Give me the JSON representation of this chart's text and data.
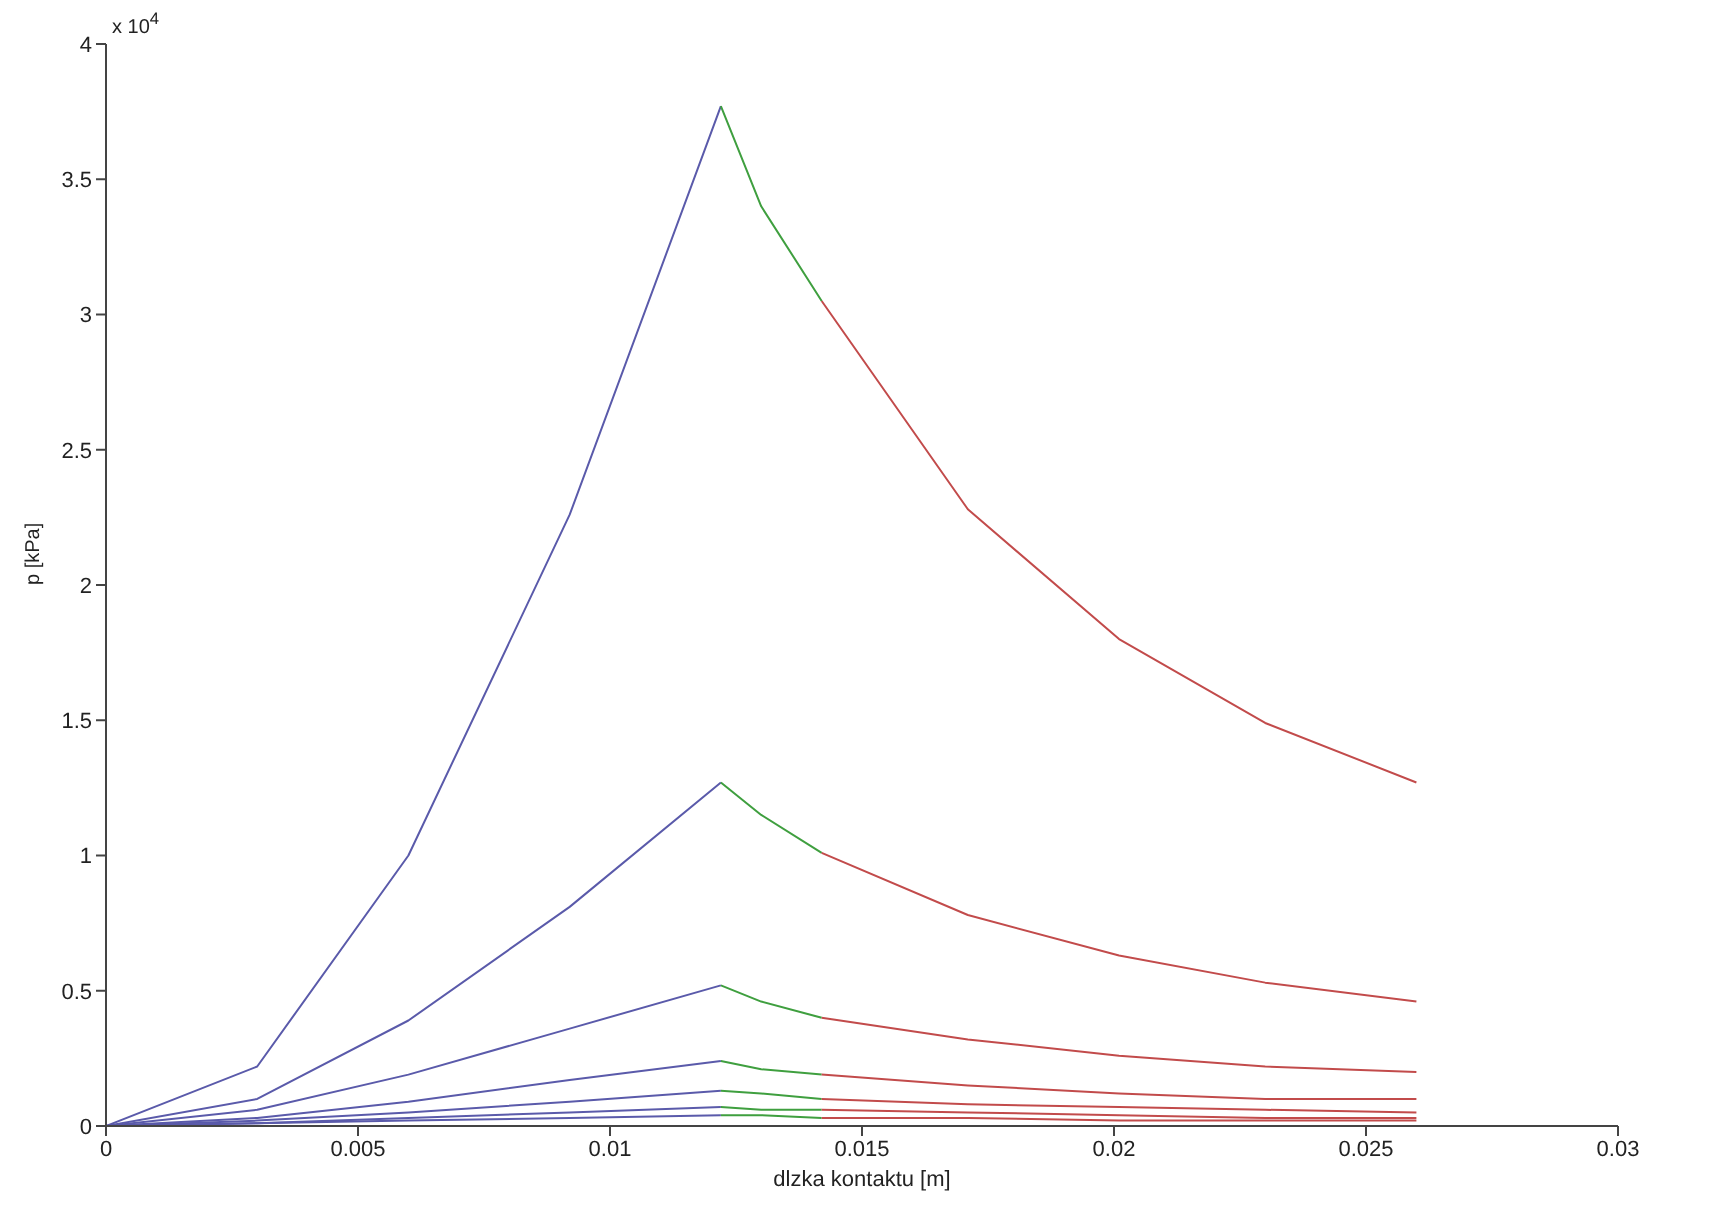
{
  "chart_data": {
    "type": "line",
    "xlabel": "dlzka kontaktu [m]",
    "ylabel": "p [kPa]",
    "annotations": [
      "x 10$^{4}$"
    ],
    "xlim": [
      0,
      0.03
    ],
    "xticks": [
      0,
      0.005,
      0.01,
      0.015,
      0.02,
      0.025,
      0.03
    ],
    "ylim": [
      0,
      4
    ],
    "yticks": [
      0,
      0.5,
      1,
      1.5,
      2,
      2.5,
      3,
      3.5,
      4
    ],
    "grid": false,
    "marker": "none",
    "line_style": "solid",
    "series": [
      {
        "color": "#5a5aaa",
        "x": [
          0,
          0.003,
          0.006,
          0.0092,
          0.0122
        ],
        "values": [
          0,
          0.22,
          1,
          2.26,
          3.77
        ]
      },
      {
        "color": "#3f9f3f",
        "x": [
          0.0122,
          0.013,
          0.0142
        ],
        "values": [
          3.77,
          3.4,
          3.05
        ]
      },
      {
        "color": "#c24b4b",
        "x": [
          0.0142,
          0.0171,
          0.0201,
          0.023,
          0.026
        ],
        "values": [
          3.05,
          2.28,
          1.8,
          1.49,
          1.27
        ]
      },
      {
        "color": "#5a5aaa",
        "x": [
          0,
          0.003,
          0.006,
          0.0092,
          0.0122
        ],
        "values": [
          0,
          0.1,
          0.39,
          0.81,
          1.27
        ]
      },
      {
        "color": "#3f9f3f",
        "x": [
          0.0122,
          0.013,
          0.0142
        ],
        "values": [
          1.27,
          1.15,
          1.01
        ]
      },
      {
        "color": "#c24b4b",
        "x": [
          0.0142,
          0.0171,
          0.0201,
          0.023,
          0.026
        ],
        "values": [
          1.01,
          0.78,
          0.63,
          0.53,
          0.46
        ]
      },
      {
        "color": "#5a5aaa",
        "x": [
          0,
          0.003,
          0.006,
          0.0092,
          0.0122
        ],
        "values": [
          0,
          0.06,
          0.19,
          0.36,
          0.52
        ]
      },
      {
        "color": "#3f9f3f",
        "x": [
          0.0122,
          0.013,
          0.0142
        ],
        "values": [
          0.52,
          0.46,
          0.4
        ]
      },
      {
        "color": "#c24b4b",
        "x": [
          0.0142,
          0.0171,
          0.0201,
          0.023,
          0.026
        ],
        "values": [
          0.4,
          0.32,
          0.26,
          0.22,
          0.2
        ]
      },
      {
        "color": "#5a5aaa",
        "x": [
          0,
          0.003,
          0.006,
          0.0092,
          0.0122
        ],
        "values": [
          0,
          0.03,
          0.09,
          0.17,
          0.24
        ]
      },
      {
        "color": "#3f9f3f",
        "x": [
          0.0122,
          0.013,
          0.0142
        ],
        "values": [
          0.24,
          0.21,
          0.19
        ]
      },
      {
        "color": "#c24b4b",
        "x": [
          0.0142,
          0.0171,
          0.0201,
          0.023,
          0.026
        ],
        "values": [
          0.19,
          0.15,
          0.12,
          0.1,
          0.1
        ]
      },
      {
        "color": "#5a5aaa",
        "x": [
          0,
          0.003,
          0.006,
          0.0092,
          0.0122
        ],
        "values": [
          0,
          0.02,
          0.05,
          0.09,
          0.13
        ]
      },
      {
        "color": "#3f9f3f",
        "x": [
          0.0122,
          0.013,
          0.0142
        ],
        "values": [
          0.13,
          0.12,
          0.1
        ]
      },
      {
        "color": "#c24b4b",
        "x": [
          0.0142,
          0.0171,
          0.0201,
          0.023,
          0.026
        ],
        "values": [
          0.1,
          0.08,
          0.07,
          0.06,
          0.05
        ]
      },
      {
        "color": "#5a5aaa",
        "x": [
          0,
          0.003,
          0.006,
          0.0092,
          0.0122
        ],
        "values": [
          0,
          0.01,
          0.03,
          0.05,
          0.07
        ]
      },
      {
        "color": "#3f9f3f",
        "x": [
          0.0122,
          0.013,
          0.0142
        ],
        "values": [
          0.07,
          0.06,
          0.06
        ]
      },
      {
        "color": "#c24b4b",
        "x": [
          0.0142,
          0.0171,
          0.0201,
          0.023,
          0.026
        ],
        "values": [
          0.06,
          0.05,
          0.04,
          0.03,
          0.03
        ]
      },
      {
        "color": "#5a5aaa",
        "x": [
          0,
          0.003,
          0.006,
          0.0092,
          0.0122
        ],
        "values": [
          0,
          0.01,
          0.02,
          0.03,
          0.04
        ]
      },
      {
        "color": "#3f9f3f",
        "x": [
          0.0122,
          0.013,
          0.0142
        ],
        "values": [
          0.04,
          0.04,
          0.03
        ]
      },
      {
        "color": "#c24b4b",
        "x": [
          0.0142,
          0.0171,
          0.0201,
          0.023,
          0.026
        ],
        "values": [
          0.03,
          0.03,
          0.02,
          0.02,
          0.02
        ]
      }
    ]
  }
}
